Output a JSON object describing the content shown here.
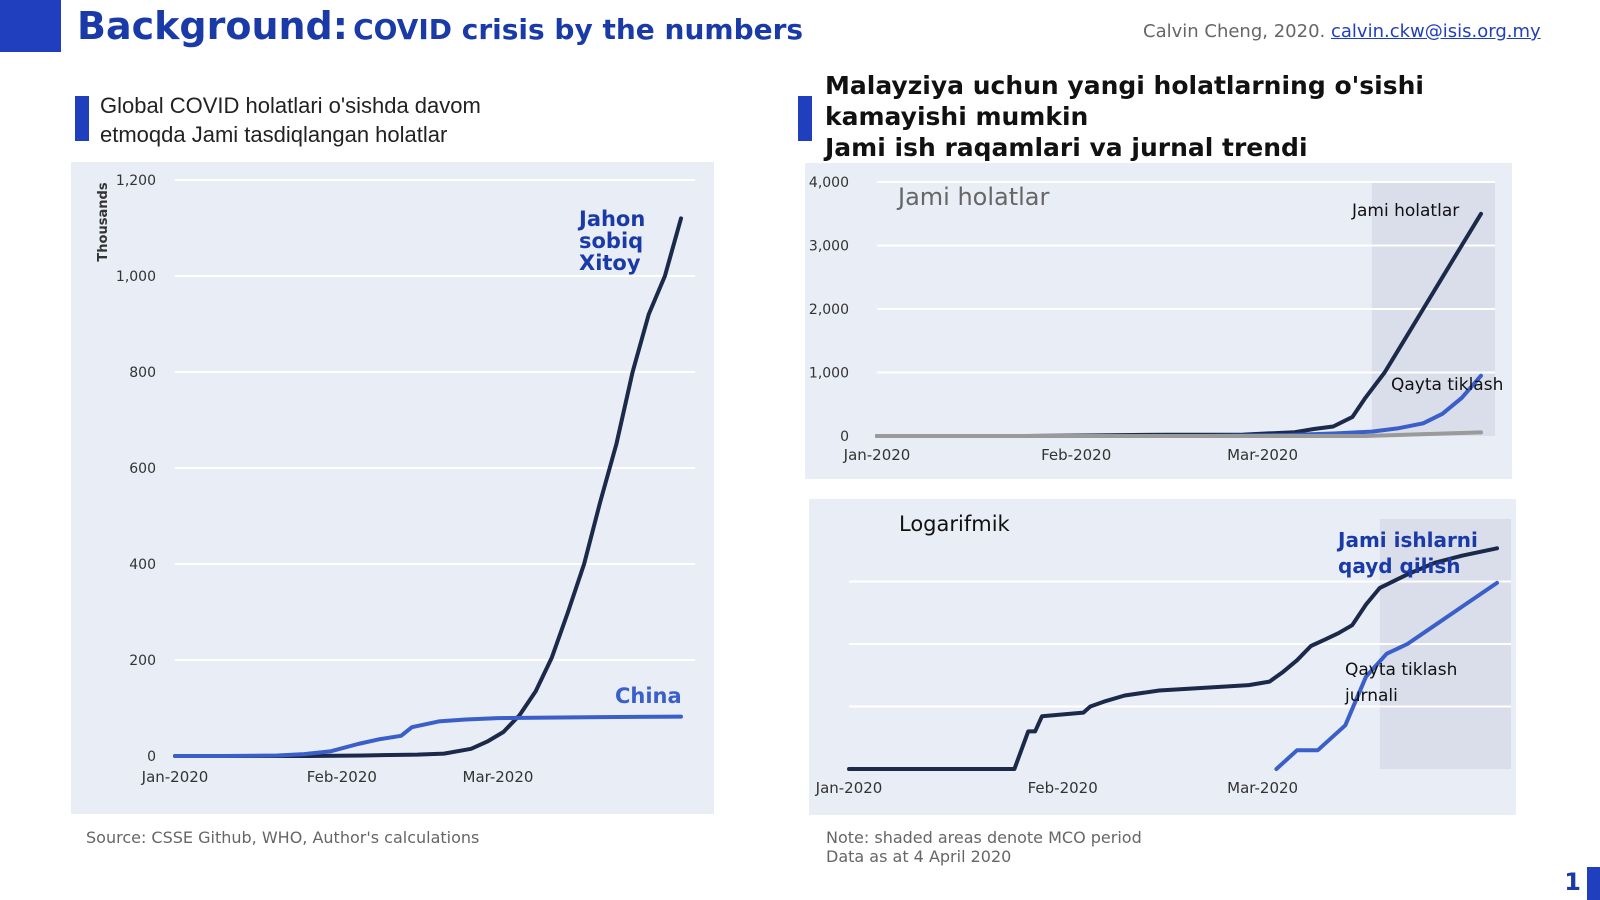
{
  "slide": {
    "title_main": "Background:",
    "title_sub": "COVID crisis by the numbers",
    "author_text": "Calvin Cheng, 2020.",
    "author_email": "calvin.ckw@isis.org.my",
    "page_number": "1",
    "left_heading_line1": "Global COVID holatlari o'sishda davom",
    "left_heading_line2": "etmoqda Jami tasdiqlangan holatlar",
    "right_heading_line1": "Malayziya uchun yangi holatlarning o'sishi",
    "right_heading_line2": "kamayishi mumkin",
    "right_heading_line3": "Jami ish raqamlari va jurnal trendi",
    "source_note": "Source: CSSE Github, WHO, Author's calculations",
    "note_line1": "Note: shaded areas denote MCO period",
    "note_line2": "Data as at 4 April 2020",
    "colors": {
      "accent": "#1f3fbf",
      "dark_line": "#1b2a4a",
      "blue_line": "#3a5fc8",
      "panel": "#e9edf6"
    }
  },
  "chart_data": [
    {
      "type": "line",
      "ylabel": "Thousands",
      "ylim": [
        0,
        1200
      ],
      "yticks": [
        0,
        200,
        400,
        600,
        800,
        1000,
        1200
      ],
      "ytick_labels": [
        "0",
        "200",
        "400",
        "600",
        "800",
        "1,000",
        "1,200"
      ],
      "xlim": [
        "2020-01-01",
        "2020-04-04"
      ],
      "xticks": [
        "2020-01-01",
        "2020-02-01",
        "2020-03-01"
      ],
      "xtick_labels": [
        "Jan-2020",
        "Feb-2020",
        "Mar-2020"
      ],
      "grid": true,
      "series": [
        {
          "name": "Jahon sobiq Xitoy",
          "label_lines": [
            "Jahon",
            "sobiq",
            "Xitoy"
          ],
          "color": "#1b2a4a",
          "x": [
            "2020-01-01",
            "2020-01-15",
            "2020-01-26",
            "2020-02-05",
            "2020-02-10",
            "2020-02-15",
            "2020-02-20",
            "2020-02-25",
            "2020-02-28",
            "2020-03-02",
            "2020-03-05",
            "2020-03-08",
            "2020-03-11",
            "2020-03-14",
            "2020-03-17",
            "2020-03-20",
            "2020-03-23",
            "2020-03-26",
            "2020-03-29",
            "2020-04-01",
            "2020-04-04"
          ],
          "y": [
            0,
            0,
            0,
            1,
            2,
            3,
            5,
            15,
            30,
            50,
            85,
            135,
            205,
            300,
            400,
            530,
            650,
            800,
            920,
            1000,
            1120
          ]
        },
        {
          "name": "China",
          "label_lines": [
            "China"
          ],
          "color": "#3a5fc8",
          "x": [
            "2020-01-01",
            "2020-01-10",
            "2020-01-20",
            "2020-01-25",
            "2020-01-30",
            "2020-02-04",
            "2020-02-08",
            "2020-02-12",
            "2020-02-14",
            "2020-02-19",
            "2020-02-24",
            "2020-03-01",
            "2020-03-10",
            "2020-03-20",
            "2020-04-04"
          ],
          "y": [
            0,
            0,
            1,
            4,
            10,
            25,
            35,
            42,
            60,
            72,
            76,
            79,
            80,
            81,
            82
          ]
        }
      ]
    },
    {
      "type": "line",
      "title": "Jami holatlar",
      "ylim": [
        0,
        4000
      ],
      "yticks": [
        0,
        1000,
        2000,
        3000,
        4000
      ],
      "ytick_labels": [
        "0",
        "1,000",
        "2,000",
        "3,000",
        "4,000"
      ],
      "xlim": [
        "2020-01-01",
        "2020-04-04"
      ],
      "xticks": [
        "2020-01-01",
        "2020-02-01",
        "2020-03-01"
      ],
      "xtick_labels": [
        "Jan-2020",
        "Feb-2020",
        "Mar-2020"
      ],
      "shaded_from": "2020-03-18",
      "grid": true,
      "series": [
        {
          "name": "Jami holatlar",
          "color": "#1b2a4a",
          "x": [
            "2020-01-01",
            "2020-01-24",
            "2020-02-04",
            "2020-02-15",
            "2020-02-27",
            "2020-03-06",
            "2020-03-09",
            "2020-03-12",
            "2020-03-15",
            "2020-03-17",
            "2020-03-20",
            "2020-03-23",
            "2020-03-26",
            "2020-03-29",
            "2020-04-01",
            "2020-04-04"
          ],
          "y": [
            0,
            0,
            10,
            20,
            22,
            60,
            110,
            150,
            300,
            600,
            1000,
            1500,
            2000,
            2500,
            3000,
            3500
          ]
        },
        {
          "name": "Qayta tiklash",
          "color": "#3a5fc8",
          "x": [
            "2020-01-01",
            "2020-02-20",
            "2020-03-05",
            "2020-03-12",
            "2020-03-18",
            "2020-03-22",
            "2020-03-26",
            "2020-03-29",
            "2020-04-01",
            "2020-04-04"
          ],
          "y": [
            0,
            0,
            15,
            40,
            70,
            120,
            200,
            350,
            600,
            950
          ]
        },
        {
          "name": "",
          "color": "#9a9a9a",
          "x": [
            "2020-01-01",
            "2020-03-17",
            "2020-03-25",
            "2020-04-04"
          ],
          "y": [
            0,
            0,
            25,
            57
          ]
        }
      ]
    },
    {
      "type": "line",
      "title": "Logarifmik",
      "yscale": "log",
      "ylim": [
        1,
        10000
      ],
      "gridlines": [
        10,
        100,
        1000
      ],
      "xlim": [
        "2020-01-01",
        "2020-04-04"
      ],
      "xticks": [
        "2020-01-01",
        "2020-02-01",
        "2020-03-01"
      ],
      "xtick_labels": [
        "Jan-2020",
        "Feb-2020",
        "Mar-2020"
      ],
      "shaded_from": "2020-03-18",
      "grid": true,
      "series": [
        {
          "name": "Jami ishlarni qayd qilish",
          "label_lines": [
            "Jami ishlarni",
            "qayd qilish"
          ],
          "color": "#1b2a4a",
          "x": [
            "2020-01-01",
            "2020-01-25",
            "2020-01-27",
            "2020-01-28",
            "2020-01-29",
            "2020-02-04",
            "2020-02-05",
            "2020-02-07",
            "2020-02-10",
            "2020-02-15",
            "2020-02-28",
            "2020-03-02",
            "2020-03-04",
            "2020-03-06",
            "2020-03-08",
            "2020-03-10",
            "2020-03-12",
            "2020-03-14",
            "2020-03-16",
            "2020-03-18",
            "2020-03-22",
            "2020-03-26",
            "2020-03-30",
            "2020-04-04"
          ],
          "y": [
            1,
            1,
            4,
            4,
            7,
            8,
            10,
            12,
            15,
            18,
            22,
            25,
            36,
            55,
            93,
            117,
            149,
            200,
            428,
            790,
            1300,
            2000,
            2600,
            3400
          ]
        },
        {
          "name": "Qayta tiklash jurnali",
          "label_lines": [
            "Qayta tiklash",
            "jurnali"
          ],
          "color": "#3a5fc8",
          "x": [
            "2020-03-03",
            "2020-03-06",
            "2020-03-09",
            "2020-03-13",
            "2020-03-16",
            "2020-03-19",
            "2020-03-22",
            "2020-03-26",
            "2020-03-30",
            "2020-04-04"
          ],
          "y": [
            1,
            2,
            2,
            5,
            30,
            70,
            100,
            200,
            400,
            950
          ]
        }
      ]
    }
  ]
}
